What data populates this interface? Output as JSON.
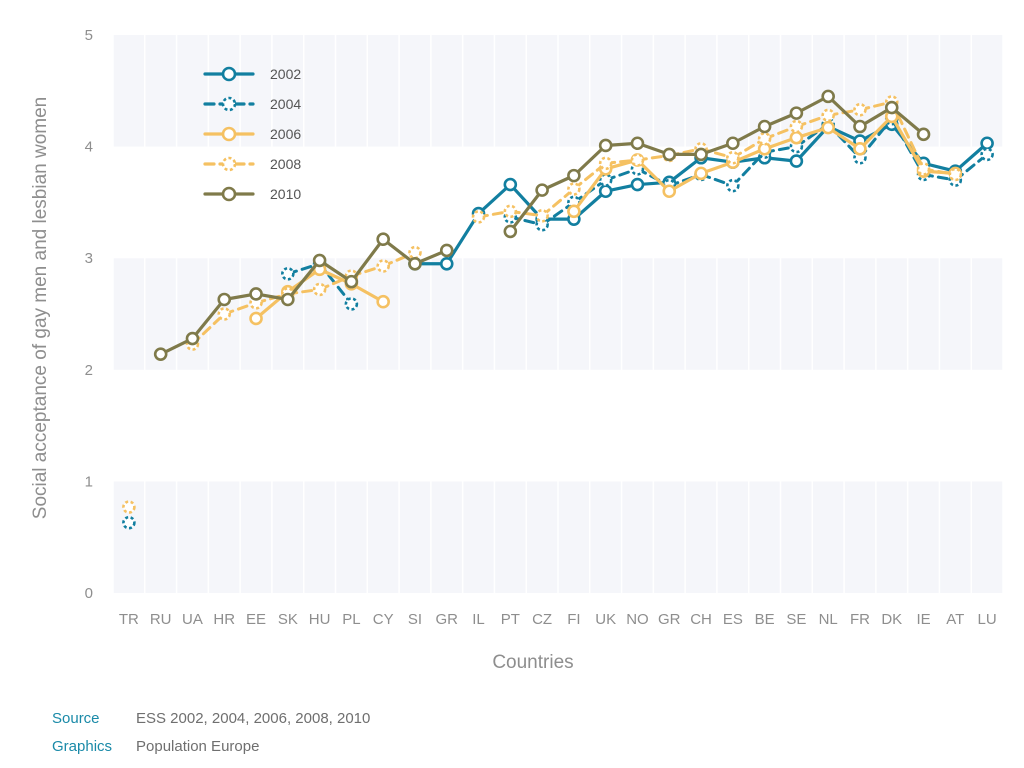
{
  "chart_data": {
    "type": "line",
    "title": "",
    "xlabel": "Countries",
    "ylabel": "Social acceptance of gay men and lesbian women",
    "ylim": [
      0,
      5
    ],
    "yticks": [
      "0",
      "1",
      "2",
      "3",
      "4",
      "5"
    ],
    "categories": [
      "TR",
      "RU",
      "UA",
      "HR",
      "EE",
      "SK",
      "HU",
      "PL",
      "CY",
      "SI",
      "GR",
      "IL",
      "PT",
      "CZ",
      "FI",
      "UK",
      "NO",
      "GR",
      "CH",
      "ES",
      "BE",
      "SE",
      "NL",
      "FR",
      "DK",
      "IE",
      "AT",
      "LU"
    ],
    "legend_position": "top-left",
    "series": [
      {
        "name": "2002",
        "color": "#127fa0",
        "style": "solid",
        "values": [
          null,
          null,
          null,
          null,
          null,
          null,
          null,
          null,
          null,
          2.95,
          2.95,
          3.4,
          3.66,
          3.35,
          3.35,
          3.6,
          3.66,
          3.68,
          3.9,
          3.86,
          3.9,
          3.87,
          4.18,
          4.05,
          4.2,
          3.85,
          3.78,
          4.03
        ]
      },
      {
        "name": "2004",
        "color": "#127fa0",
        "style": "dotted",
        "values": [
          0.63,
          null,
          null,
          null,
          null,
          2.86,
          2.95,
          2.59,
          null,
          null,
          null,
          null,
          3.37,
          3.3,
          3.5,
          3.7,
          3.8,
          3.65,
          3.75,
          3.65,
          3.95,
          4.0,
          4.2,
          3.9,
          4.25,
          3.75,
          3.7,
          3.93
        ]
      },
      {
        "name": "2006",
        "color": "#f5c162",
        "style": "solid",
        "values": [
          null,
          null,
          null,
          null,
          2.46,
          2.7,
          2.9,
          2.77,
          2.61,
          null,
          null,
          null,
          null,
          null,
          3.42,
          3.8,
          3.88,
          3.6,
          3.76,
          3.86,
          3.98,
          4.08,
          4.17,
          3.98,
          4.27,
          3.78,
          3.76,
          null
        ]
      },
      {
        "name": "2008",
        "color": "#f5c162",
        "style": "dotted",
        "values": [
          0.77,
          null,
          2.23,
          2.5,
          2.6,
          2.68,
          2.72,
          2.84,
          2.93,
          3.05,
          null,
          3.37,
          3.42,
          3.38,
          3.62,
          3.85,
          3.88,
          3.92,
          3.98,
          3.9,
          4.07,
          4.18,
          4.28,
          4.33,
          4.4,
          3.8,
          3.75,
          null
        ]
      },
      {
        "name": "2010",
        "color": "#7f7a4a",
        "style": "solid",
        "values": [
          null,
          2.14,
          2.28,
          2.63,
          2.68,
          2.63,
          2.98,
          2.79,
          3.17,
          2.95,
          3.07,
          null,
          3.24,
          3.61,
          3.74,
          4.01,
          4.03,
          3.93,
          3.93,
          4.03,
          4.18,
          4.3,
          4.45,
          4.18,
          4.35,
          4.11,
          null,
          null
        ]
      }
    ]
  },
  "footer": {
    "source_label": "Source",
    "source_value": "ESS 2002, 2004, 2006, 2008, 2010",
    "graphics_label": "Graphics",
    "graphics_value": "Population Europe"
  }
}
